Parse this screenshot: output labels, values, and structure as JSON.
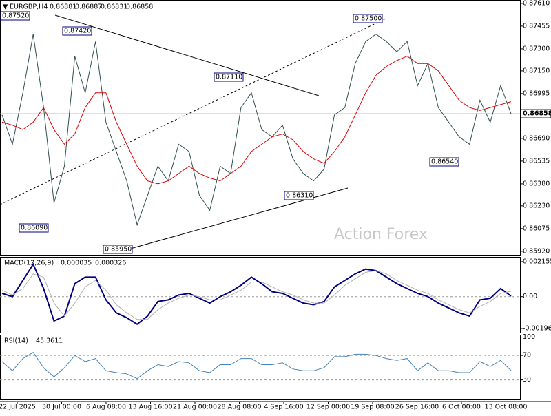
{
  "chart_data": [
    {
      "type": "line",
      "symbol": "EURGBP,H4",
      "ohlc": [
        {
          "value": 0.86881,
          "label": "0.86881"
        },
        {
          "value": 0.86887,
          "label": "0.86887"
        },
        {
          "value": 0.86831,
          "label": "0.86831"
        },
        {
          "value": 0.86858,
          "label": "0.86858"
        }
      ],
      "current_price": {
        "value": 0.86858,
        "label": "0.86858"
      },
      "watermark": "Action Forex",
      "x_labels": [
        "22 Jul 2025",
        "30 Jul 00:00",
        "6 Aug 08:00",
        "13 Aug 16:00",
        "21 Aug 00:00",
        "28 Aug 08:00",
        "4 Sep 16:00",
        "12 Sep 00:00",
        "19 Sep 08:00",
        "26 Sep 16:00",
        "6 Oct 00:00",
        "13 Oct 08:00"
      ],
      "annotations": [
        "0.87520",
        "0.87420",
        "0.87110",
        "0.87500",
        "0.86540",
        "0.86310",
        "0.86090",
        "0.85950"
      ],
      "ylim": [
        0.85896,
        0.87633
      ],
      "yticks": [
        {
          "value": 0.8761,
          "label": "0.87610"
        },
        {
          "value": 0.87455,
          "label": "0.87455"
        },
        {
          "value": 0.873,
          "label": "0.87300"
        },
        {
          "value": 0.8715,
          "label": "0.87150"
        },
        {
          "value": 0.86995,
          "label": "0.86995"
        },
        {
          "value": 0.8684,
          "label": "0.86840"
        },
        {
          "value": 0.8669,
          "label": "0.86690"
        },
        {
          "value": 0.86535,
          "label": "0.86535"
        },
        {
          "value": 0.8638,
          "label": "0.86380"
        },
        {
          "value": 0.8623,
          "label": "0.86230"
        },
        {
          "value": 0.86075,
          "label": "0.86075"
        },
        {
          "value": 0.8592,
          "label": "0.85920"
        }
      ],
      "series": [
        {
          "color": "#2f4f4f",
          "values": [
            0.8685,
            0.8665,
            0.87,
            0.874,
            0.869,
            0.8625,
            0.865,
            0.8725,
            0.87,
            0.8735,
            0.868,
            0.866,
            0.864,
            0.861,
            0.863,
            0.865,
            0.864,
            0.8665,
            0.866,
            0.863,
            0.862,
            0.865,
            0.8645,
            0.869,
            0.87,
            0.8675,
            0.867,
            0.8678,
            0.8655,
            0.8645,
            0.864,
            0.8648,
            0.8685,
            0.869,
            0.872,
            0.8735,
            0.874,
            0.8735,
            0.8728,
            0.8735,
            0.8705,
            0.872,
            0.869,
            0.868,
            0.867,
            0.8665,
            0.8695,
            0.868,
            0.8705,
            0.86858
          ]
        },
        {
          "color": "#e00000",
          "values": [
            0.868,
            0.8678,
            0.8675,
            0.868,
            0.869,
            0.8675,
            0.8665,
            0.8672,
            0.869,
            0.87,
            0.87,
            0.868,
            0.8665,
            0.865,
            0.864,
            0.8638,
            0.864,
            0.8645,
            0.865,
            0.8645,
            0.8642,
            0.864,
            0.8645,
            0.865,
            0.866,
            0.8665,
            0.867,
            0.8672,
            0.8668,
            0.866,
            0.8655,
            0.8652,
            0.866,
            0.867,
            0.8685,
            0.87,
            0.8712,
            0.8718,
            0.8722,
            0.8725,
            0.872,
            0.872,
            0.8715,
            0.8705,
            0.8695,
            0.869,
            0.8688,
            0.869,
            0.8692,
            0.8694
          ]
        }
      ]
    },
    {
      "type": "line",
      "name": "MACD(12,26,9)",
      "readout": [
        {
          "value": 3.5e-05,
          "label": "0.000035"
        },
        {
          "value": 0.000326,
          "label": "0.000326"
        }
      ],
      "ylim": [
        -0.00222,
        0.00245
      ],
      "yticks": [
        0.002155,
        {
          "value": 0,
          "label": "0.00"
        },
        -0.001965
      ],
      "series": [
        {
          "color": "#000080",
          "values": [
            0.0002,
            0,
            0.001,
            0.002,
            0.0005,
            -0.0015,
            -0.0012,
            0.0008,
            0.0012,
            0.0012,
            -0.0002,
            -0.001,
            -0.0013,
            -0.0017,
            -0.0012,
            -0.0003,
            -0.0002,
            0.0001,
            0.0002,
            -0.0001,
            -0.0004,
            0,
            0.0003,
            0.0007,
            0.0012,
            0.0008,
            0.0003,
            0.0002,
            -0.0001,
            -0.0004,
            -0.0005,
            -0.0003,
            0.0006,
            0.001,
            0.0014,
            0.0017,
            0.0016,
            0.0012,
            0.0008,
            0.0005,
            0.0002,
            0,
            -0.0004,
            -0.0007,
            -0.001,
            -0.0012,
            -0.0002,
            -0.0001,
            0.0005,
            3.5e-05
          ]
        },
        {
          "color": "#b0b0b0",
          "values": [
            0.0004,
            0.0001,
            0.0005,
            0.0014,
            0.0012,
            -0.0004,
            -0.0012,
            -0.0004,
            0.0006,
            0.001,
            0.0004,
            -0.0005,
            -0.001,
            -0.0014,
            -0.0014,
            -0.0008,
            -0.0004,
            -0.0001,
            0.0001,
            0,
            -0.0002,
            -0.0002,
            0.0001,
            0.0004,
            0.0009,
            0.0009,
            0.0006,
            0.0003,
            0.0001,
            -0.0002,
            -0.0004,
            -0.0004,
            0.0001,
            0.0007,
            0.0011,
            0.0015,
            0.0016,
            0.0014,
            0.001,
            0.0007,
            0.0004,
            0.0002,
            -0.0002,
            -0.0005,
            -0.0008,
            -0.001,
            -0.0006,
            -0.0003,
            0.0002,
            0.000326
          ]
        }
      ]
    },
    {
      "type": "line",
      "name": "RSI(14)",
      "readout": 45.3611,
      "ylim": [
        -2,
        104
      ],
      "yticks": [
        100,
        70,
        30
      ],
      "series": [
        {
          "color": "#4682b4",
          "values": [
            60,
            45,
            65,
            75,
            50,
            35,
            50,
            70,
            60,
            65,
            45,
            42,
            40,
            32,
            45,
            55,
            52,
            60,
            58,
            45,
            42,
            55,
            55,
            65,
            65,
            55,
            55,
            58,
            48,
            45,
            45,
            50,
            68,
            68,
            72,
            72,
            70,
            65,
            62,
            65,
            45,
            58,
            45,
            45,
            42,
            42,
            60,
            52,
            62,
            45.3611
          ]
        }
      ]
    }
  ]
}
